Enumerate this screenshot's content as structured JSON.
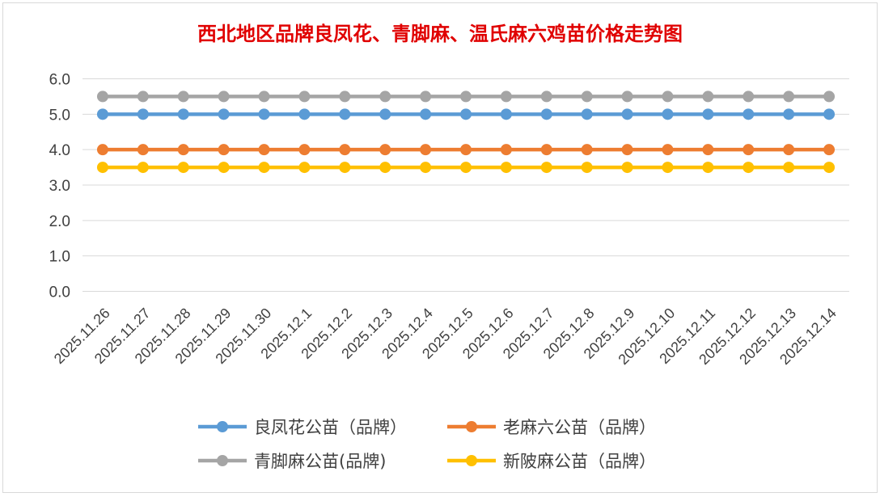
{
  "chart_data": {
    "type": "line",
    "title": "西北地区品牌良凤花、青脚麻、温氏麻六鸡苗价格走势图",
    "xlabel": "",
    "ylabel": "",
    "ylim": [
      0,
      6
    ],
    "yticks": [
      "0.0",
      "1.0",
      "2.0",
      "3.0",
      "4.0",
      "5.0",
      "6.0"
    ],
    "grid": true,
    "legend_position": "bottom",
    "categories": [
      "2025.11.26",
      "2025.11.27",
      "2025.11.28",
      "2025.11.29",
      "2025.11.30",
      "2025.12.1",
      "2025.12.2",
      "2025.12.3",
      "2025.12.4",
      "2025.12.5",
      "2025.12.6",
      "2025.12.7",
      "2025.12.8",
      "2025.12.9",
      "2025.12.10",
      "2025.12.11",
      "2025.12.12",
      "2025.12.13",
      "2025.12.14"
    ],
    "series": [
      {
        "name": "良凤花公苗（品牌）",
        "color": "#5b9bd5",
        "values": [
          5.0,
          5.0,
          5.0,
          5.0,
          5.0,
          5.0,
          5.0,
          5.0,
          5.0,
          5.0,
          5.0,
          5.0,
          5.0,
          5.0,
          5.0,
          5.0,
          5.0,
          5.0,
          5.0
        ]
      },
      {
        "name": "老麻六公苗（品牌）",
        "color": "#ed7d31",
        "values": [
          4.0,
          4.0,
          4.0,
          4.0,
          4.0,
          4.0,
          4.0,
          4.0,
          4.0,
          4.0,
          4.0,
          4.0,
          4.0,
          4.0,
          4.0,
          4.0,
          4.0,
          4.0,
          4.0
        ]
      },
      {
        "name": "青脚麻公苗(品牌)",
        "color": "#a5a5a5",
        "values": [
          5.5,
          5.5,
          5.5,
          5.5,
          5.5,
          5.5,
          5.5,
          5.5,
          5.5,
          5.5,
          5.5,
          5.5,
          5.5,
          5.5,
          5.5,
          5.5,
          5.5,
          5.5,
          5.5
        ]
      },
      {
        "name": "新陂麻公苗（品牌）",
        "color": "#ffc000",
        "values": [
          3.5,
          3.5,
          3.5,
          3.5,
          3.5,
          3.5,
          3.5,
          3.5,
          3.5,
          3.5,
          3.5,
          3.5,
          3.5,
          3.5,
          3.5,
          3.5,
          3.5,
          3.5,
          3.5
        ]
      }
    ]
  }
}
